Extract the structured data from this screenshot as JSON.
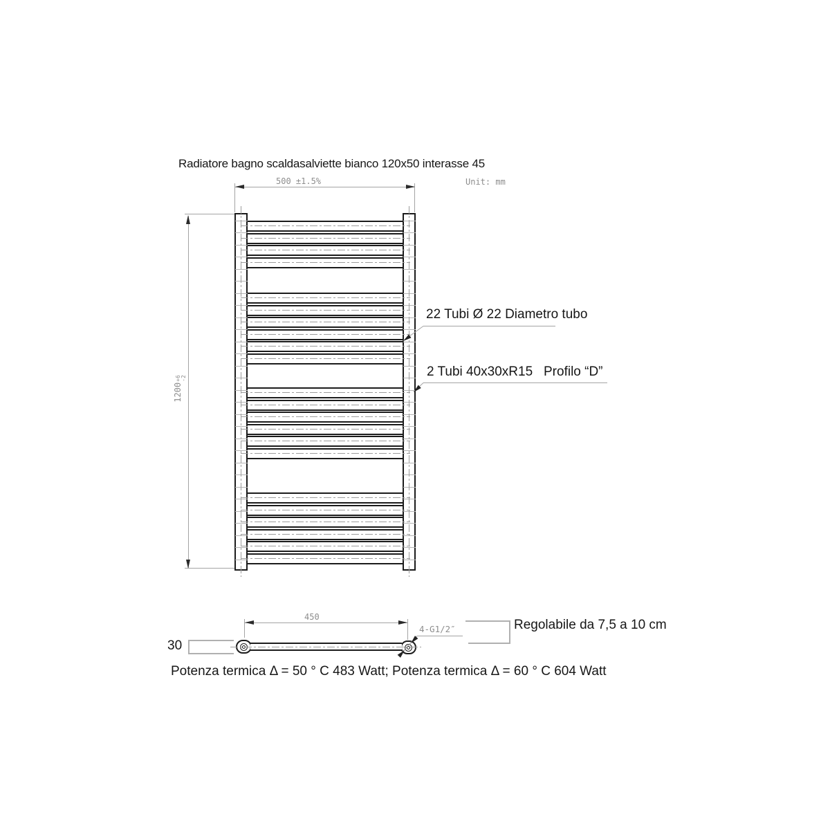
{
  "title": "Radiatore bagno scaldasalviette bianco 120x50 interasse 45",
  "dims": {
    "width": "500 ±1.5%",
    "unit": "Unit: mm",
    "height_value": "1200",
    "height_tol_plus": "+6",
    "height_tol_minus": "-2",
    "bottom_span": "450",
    "thread": "4-G1/2″",
    "depth": "30"
  },
  "annotations": {
    "tubes": "22 Tubi Ø 22 Diametro tubo",
    "profile": "2 Tubi 40x30xR15   Profilo “D”",
    "adjustable": "Regolabile da 7,5 a 10 cm"
  },
  "front_view": {
    "tube_groups": [
      4,
      6,
      6,
      6
    ],
    "tube_total": 22
  },
  "footer": "Potenza termica Δ = 50 ° C 483 Watt; Potenza termica Δ = 60 ° C 604 Watt",
  "colors": {
    "line_black": "#1b1b1b",
    "line_gray": "#a3a3a3",
    "text_gray": "#8d8d8d",
    "text_black": "#161616"
  }
}
